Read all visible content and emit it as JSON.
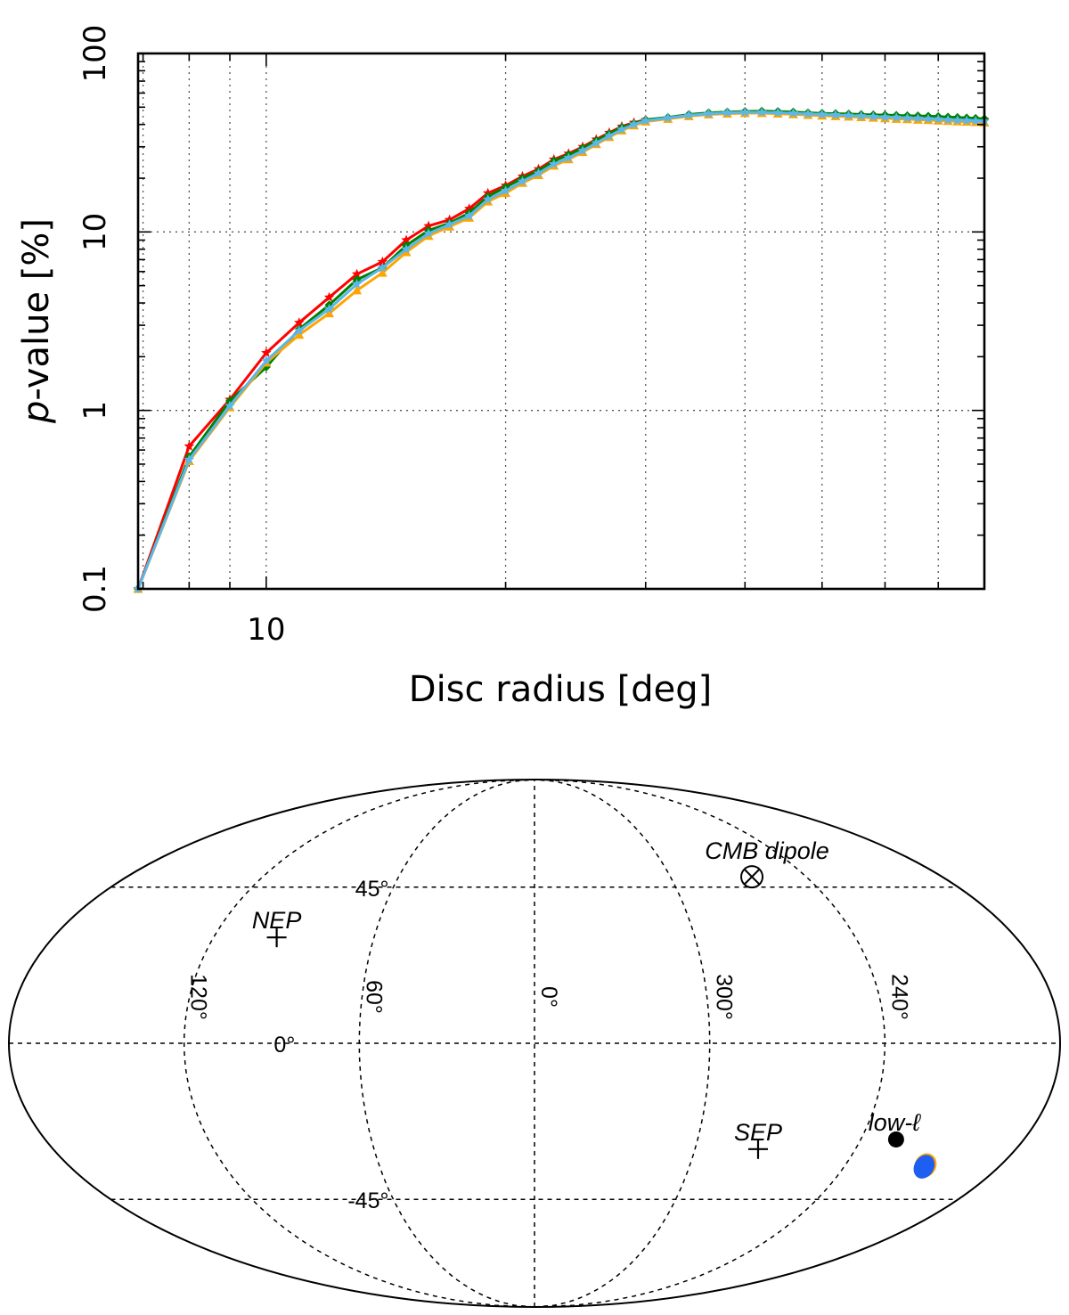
{
  "chart_data": [
    {
      "type": "line",
      "xscale": "log",
      "yscale": "log",
      "xlim": [
        6.9,
        80
      ],
      "ylim": [
        0.1,
        100
      ],
      "xlabel": "Disc radius [deg]",
      "ylabel_italic": "p",
      "ylabel_rest": "-value [%]",
      "xticks": [
        {
          "value": 10,
          "label": "10"
        }
      ],
      "yticks": [
        {
          "value": 0.1,
          "label": "0.1"
        },
        {
          "value": 1,
          "label": "1"
        },
        {
          "value": 10,
          "label": "10"
        },
        {
          "value": 100,
          "label": "100"
        }
      ],
      "grid": true,
      "series": [
        {
          "name": "red",
          "color": "#ff0000",
          "marker": "star",
          "x": [
            6.9,
            8,
            9,
            10,
            11,
            12,
            13,
            14,
            15,
            16,
            17,
            18,
            19,
            20,
            21,
            22,
            23,
            24,
            25,
            26,
            27,
            28,
            29,
            30,
            32,
            34,
            36,
            38,
            40,
            42,
            44,
            46,
            48,
            50,
            52,
            54,
            56,
            58,
            60,
            62,
            64,
            66,
            68,
            70,
            72,
            74,
            76,
            78,
            80
          ],
          "values": [
            0.1,
            0.63,
            1.15,
            2.1,
            3.1,
            4.3,
            5.8,
            6.8,
            9.0,
            10.8,
            11.7,
            13.5,
            16.5,
            18.2,
            20.5,
            22.5,
            25.5,
            27.5,
            30.0,
            33.0,
            36.0,
            39.0,
            41.0,
            42.5,
            43.5,
            45.0,
            46.0,
            46.5,
            47.0,
            47.0,
            46.8,
            46.5,
            46.0,
            45.8,
            45.5,
            45.2,
            45.0,
            44.8,
            44.8,
            44.5,
            44.3,
            44.2,
            44.0,
            43.8,
            43.5,
            43.2,
            43.0,
            42.8,
            42.5
          ]
        },
        {
          "name": "green",
          "color": "#008000",
          "marker": "diamond",
          "x": [
            6.9,
            8,
            9,
            10,
            11,
            12,
            13,
            14,
            15,
            16,
            17,
            18,
            19,
            20,
            21,
            22,
            23,
            24,
            25,
            26,
            27,
            28,
            29,
            30,
            32,
            34,
            36,
            38,
            40,
            42,
            44,
            46,
            48,
            50,
            52,
            54,
            56,
            58,
            60,
            62,
            64,
            66,
            68,
            70,
            72,
            74,
            76,
            78,
            80
          ],
          "values": [
            0.1,
            0.55,
            1.13,
            1.75,
            2.85,
            3.9,
            5.4,
            6.3,
            8.4,
            10.2,
            11.2,
            12.8,
            15.8,
            17.8,
            20.0,
            22.0,
            25.0,
            27.0,
            29.5,
            32.5,
            35.5,
            38.5,
            40.5,
            42.5,
            43.8,
            45.5,
            46.5,
            47.0,
            47.3,
            47.5,
            47.3,
            47.0,
            46.5,
            46.2,
            46.0,
            45.8,
            45.5,
            45.3,
            45.2,
            45.0,
            44.8,
            44.7,
            44.5,
            44.3,
            44.0,
            43.8,
            43.5,
            43.3,
            43.0
          ]
        },
        {
          "name": "orange",
          "color": "#ffa500",
          "marker": "triangle",
          "x": [
            6.9,
            8,
            9,
            10,
            11,
            12,
            13,
            14,
            15,
            16,
            17,
            18,
            19,
            20,
            21,
            22,
            23,
            24,
            25,
            26,
            27,
            28,
            29,
            30,
            32,
            34,
            36,
            38,
            40,
            42,
            44,
            46,
            48,
            50,
            52,
            54,
            56,
            58,
            60,
            62,
            64,
            66,
            68,
            70,
            72,
            74,
            76,
            78,
            80
          ],
          "values": [
            0.1,
            0.52,
            1.04,
            1.85,
            2.65,
            3.5,
            4.7,
            5.9,
            7.7,
            9.5,
            10.7,
            12.0,
            14.8,
            16.5,
            18.8,
            20.8,
            23.5,
            25.5,
            28.0,
            31.0,
            34.0,
            37.0,
            39.5,
            41.5,
            43.0,
            44.5,
            45.5,
            46.0,
            46.3,
            46.3,
            46.0,
            45.6,
            45.2,
            44.8,
            44.5,
            44.2,
            43.9,
            43.6,
            43.3,
            43.0,
            42.8,
            42.5,
            42.3,
            42.0,
            41.8,
            41.6,
            41.4,
            41.2,
            41.0
          ]
        },
        {
          "name": "light blue",
          "color": "#5bb7ea",
          "marker": "star",
          "x": [
            6.9,
            8,
            9,
            10,
            11,
            12,
            13,
            14,
            15,
            16,
            17,
            18,
            19,
            20,
            21,
            22,
            23,
            24,
            25,
            26,
            27,
            28,
            29,
            30,
            32,
            34,
            36,
            38,
            40,
            42,
            44,
            46,
            48,
            50,
            52,
            54,
            56,
            58,
            60,
            62,
            64,
            66,
            68,
            70,
            72,
            74,
            76,
            78,
            80
          ],
          "values": [
            0.1,
            0.53,
            1.06,
            1.9,
            2.8,
            3.7,
            5.1,
            6.3,
            8.0,
            9.8,
            11.0,
            12.3,
            15.2,
            17.0,
            19.2,
            21.3,
            24.0,
            26.0,
            28.5,
            31.5,
            34.5,
            37.5,
            40.0,
            42.0,
            43.5,
            45.0,
            46.0,
            46.5,
            46.8,
            46.8,
            46.5,
            46.2,
            45.8,
            45.5,
            45.2,
            44.9,
            44.6,
            44.3,
            44.0,
            43.8,
            43.5,
            43.3,
            43.0,
            42.8,
            42.5,
            42.3,
            42.1,
            41.9,
            41.7
          ]
        }
      ]
    },
    {
      "type": "sky-map",
      "projection": "mollweide",
      "meridians": [
        {
          "lon": 120,
          "label": "120°"
        },
        {
          "lon": 60,
          "label": "60°"
        },
        {
          "lon": 0,
          "label": "0°"
        },
        {
          "lon": 300,
          "label": "300°"
        },
        {
          "lon": 240,
          "label": "240°"
        }
      ],
      "parallels": [
        {
          "lat": 45,
          "label": "45°"
        },
        {
          "lat": 0,
          "label": "0°"
        },
        {
          "lat": -45,
          "label": "-45°"
        }
      ],
      "markers": [
        {
          "name": "NEP",
          "label": "NEP",
          "symbol": "plus",
          "lon": 96.4,
          "lat": 29.8
        },
        {
          "name": "SEP",
          "label": "SEP",
          "symbol": "plus",
          "lon": 276.4,
          "lat": -29.8
        },
        {
          "name": "CMB dipole",
          "label": "CMB dipole",
          "symbol": "otimes",
          "lon": 264,
          "lat": 48.3
        },
        {
          "name": "low-ell",
          "label": "low-ℓ",
          "symbol": "dot",
          "lon": 227,
          "lat": -27
        },
        {
          "name": "detection region",
          "label": "",
          "symbol": "blob",
          "lon": 209,
          "lat": -35,
          "colors": [
            "#1e5ef0",
            "#ffa500"
          ]
        }
      ]
    }
  ]
}
